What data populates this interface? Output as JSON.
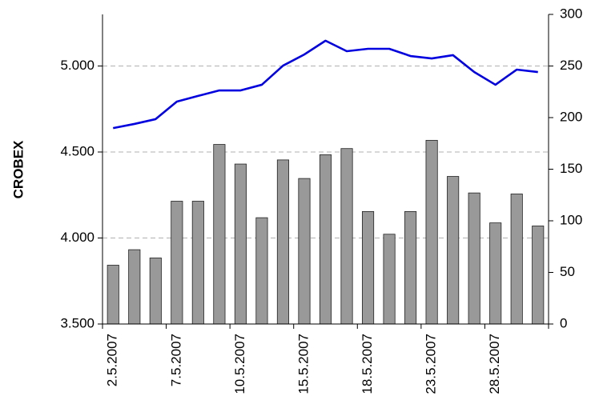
{
  "chart_data": {
    "type": "bar_line",
    "y_label": "CROBEX",
    "categories": [
      "2.5.2007",
      null,
      null,
      "7.5.2007",
      null,
      null,
      "10.5.2007",
      null,
      null,
      "15.5.2007",
      null,
      null,
      "18.5.2007",
      null,
      null,
      "23.5.2007",
      null,
      null,
      "28.5.2007",
      null,
      null
    ],
    "series": [
      {
        "type": "bar",
        "axis": "y2",
        "color": "#999999",
        "values": [
          57,
          72,
          64,
          119,
          119,
          174,
          155,
          103,
          159,
          141,
          164,
          170,
          109,
          87,
          109,
          178,
          143,
          127,
          98,
          126,
          95
        ]
      },
      {
        "type": "line",
        "axis": "y",
        "color": "#0000e0",
        "values": [
          4639,
          4663,
          4691,
          4793,
          4826,
          4858,
          4858,
          4891,
          5002,
          5067,
          5147,
          5086,
          5100,
          5100,
          5058,
          5044,
          5063,
          4965,
          4891,
          4979,
          4965
        ]
      }
    ],
    "ylim": [
      3500,
      5300
    ],
    "yticks": [
      {
        "value": 3500,
        "label": "3.500"
      },
      {
        "value": 4000,
        "label": "4.000"
      },
      {
        "value": 4500,
        "label": "4.500"
      },
      {
        "value": 5000,
        "label": "5.000"
      }
    ],
    "y2lim": [
      0,
      300
    ],
    "y2ticks": [
      0,
      50,
      100,
      150,
      200,
      250,
      300
    ],
    "grid": true
  }
}
